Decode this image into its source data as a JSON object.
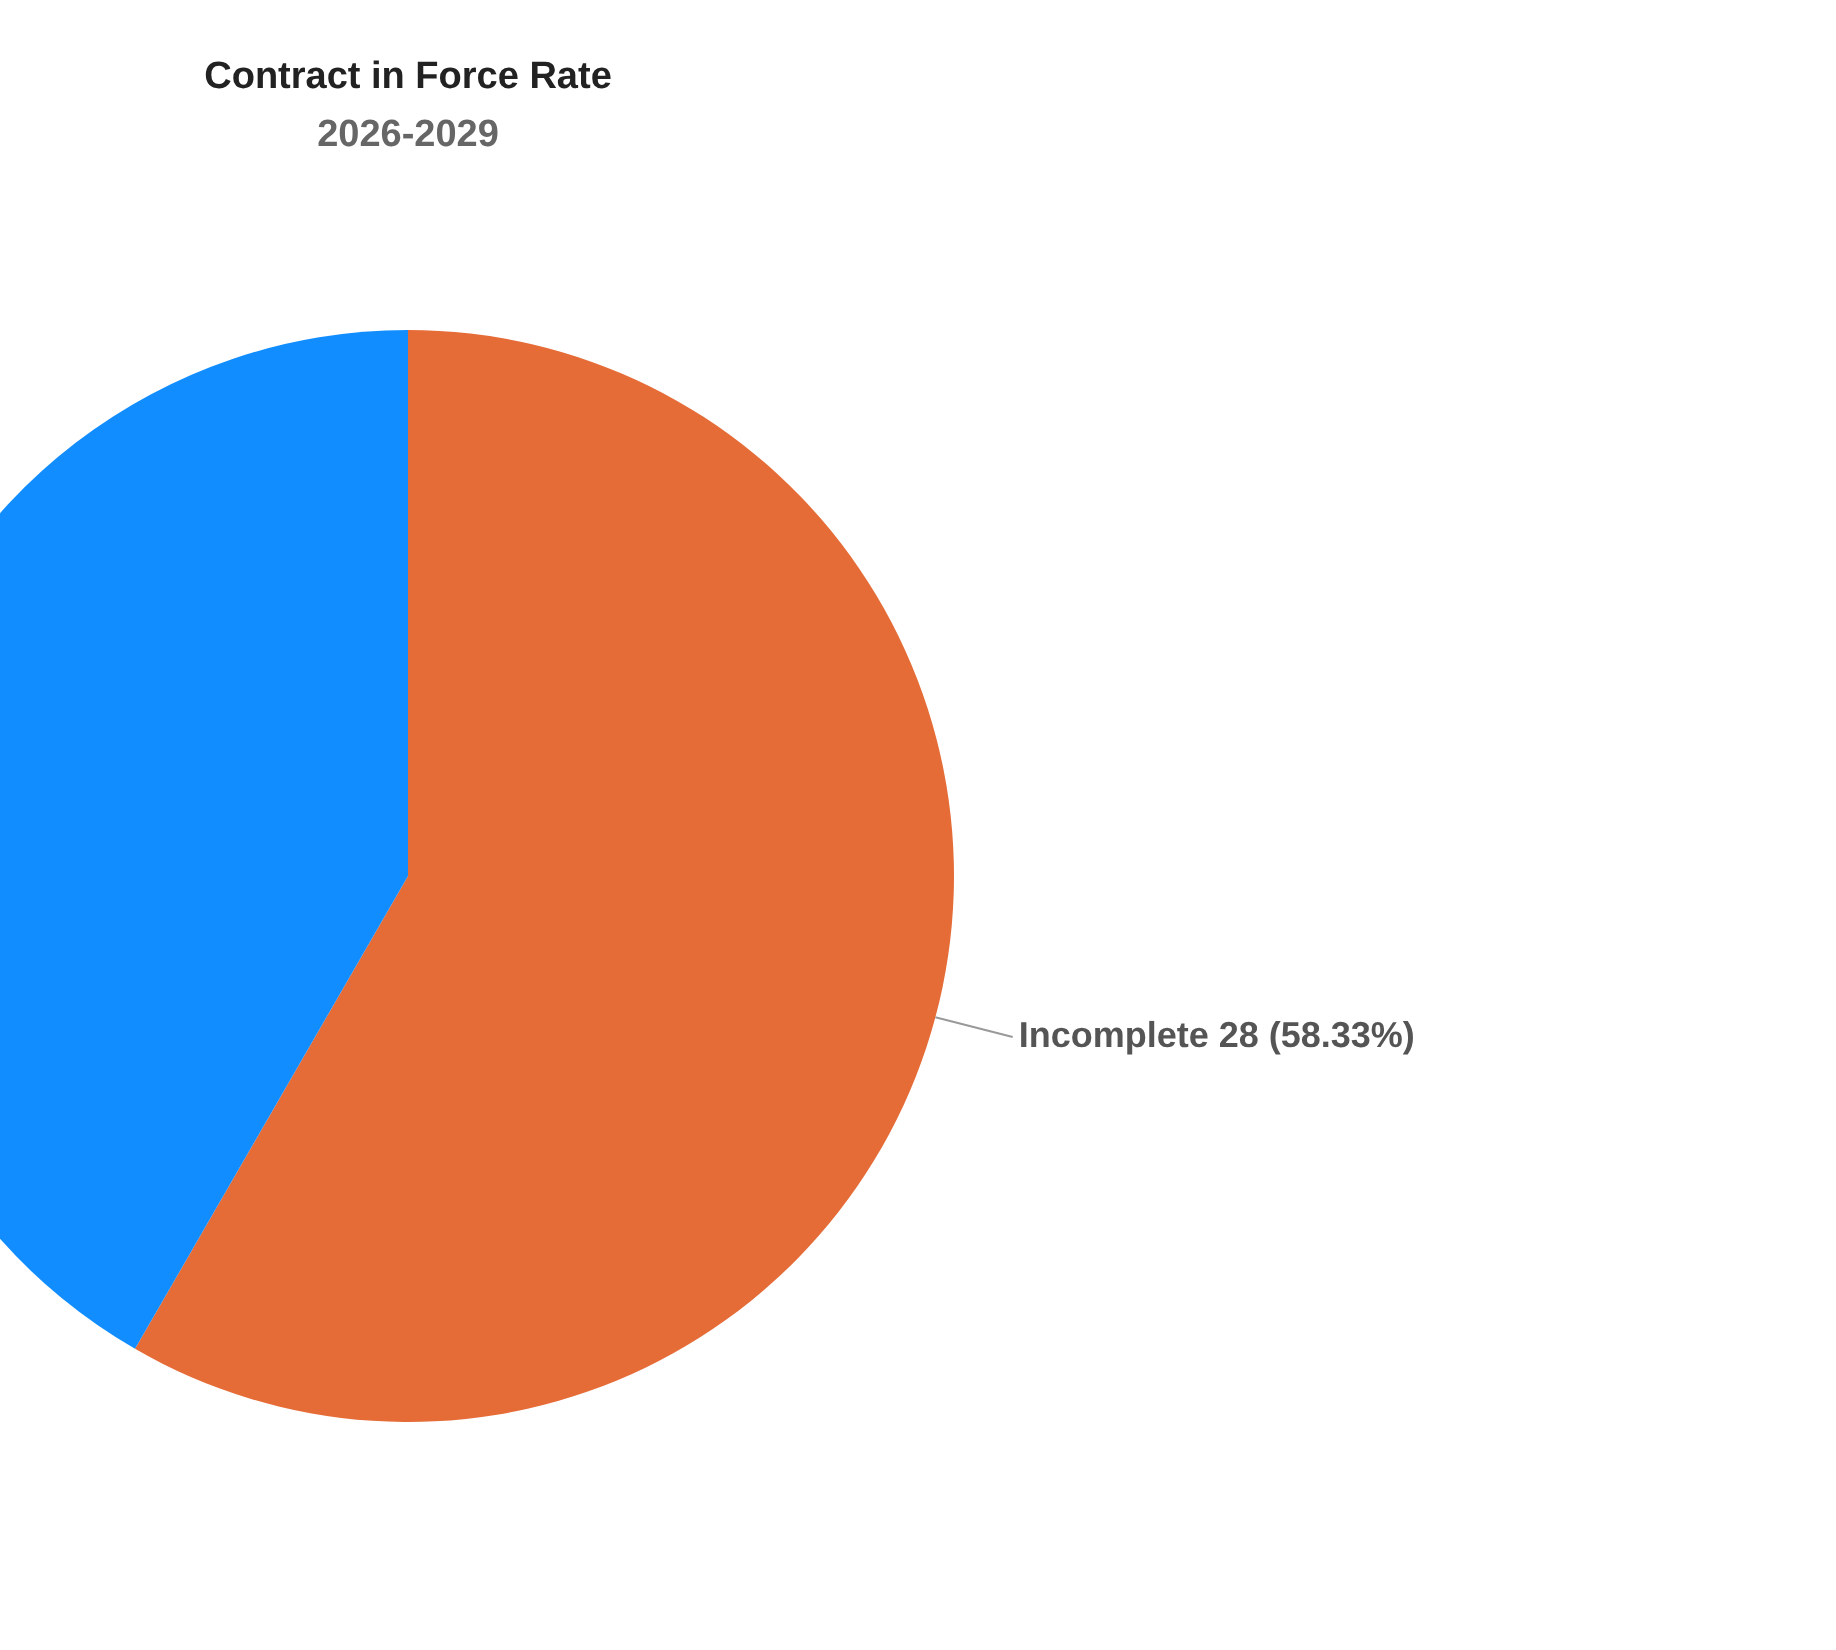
{
  "chart_data": {
    "type": "pie",
    "title": "Contract in Force Rate",
    "subtitle": "2026-2029",
    "categories": [
      "Incomplete",
      null
    ],
    "values": [
      28,
      20
    ],
    "colors": [
      "#e66c37",
      "#118dff"
    ],
    "value_labels": [
      "28 (58.33%)",
      null
    ]
  }
}
